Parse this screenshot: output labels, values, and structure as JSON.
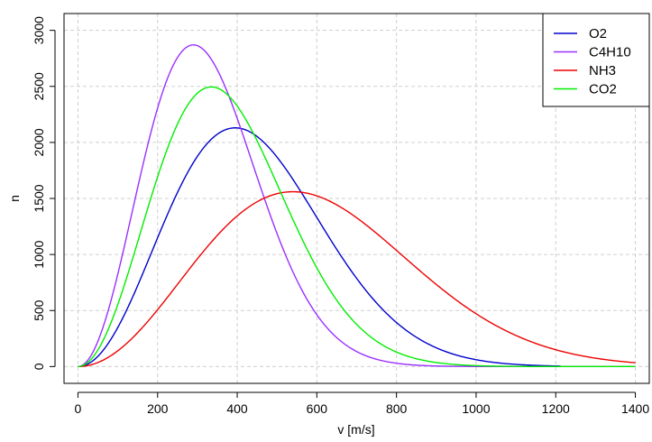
{
  "chart_data": {
    "type": "line",
    "title": "",
    "xlabel": "v [m/s]",
    "ylabel": "n",
    "xlim": [
      -35,
      1435
    ],
    "ylim": [
      -150,
      3150
    ],
    "xticks": [
      0,
      200,
      400,
      600,
      800,
      1000,
      1200,
      1400
    ],
    "yticks": [
      0,
      500,
      1000,
      1500,
      2000,
      2500,
      3000
    ],
    "xtick_labels": [
      "0",
      "200",
      "400",
      "600",
      "800",
      "1000",
      "1200",
      "1400"
    ],
    "ytick_labels": [
      "0",
      "500",
      "1000",
      "1500",
      "2000",
      "2500",
      "3000"
    ],
    "grid": true,
    "legend_position": "top-right",
    "series": [
      {
        "name": "O2",
        "color": "#0000cd",
        "peak_x": 395,
        "peak_y": 2130,
        "x_max": 1215
      },
      {
        "name": "C4H10",
        "color": "#9b30ff",
        "peak_x": 290,
        "peak_y": 2870,
        "x_max": 1400
      },
      {
        "name": "NH3",
        "color": "#ee0000",
        "peak_x": 540,
        "peak_y": 1560,
        "x_max": 1400
      },
      {
        "name": "CO2",
        "color": "#00ee00",
        "peak_x": 335,
        "peak_y": 2495,
        "x_max": 1400
      }
    ]
  }
}
